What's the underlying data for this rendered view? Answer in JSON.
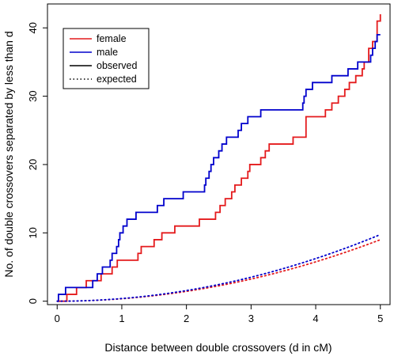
{
  "chart_data": {
    "type": "line",
    "xlabel": "Distance between double crossovers (d in cM)",
    "ylabel": "No. of double crossovers separated by less than d",
    "xlim": [
      -0.15,
      5.15
    ],
    "ylim": [
      -0.5,
      43.5
    ],
    "xticks": [
      0,
      1,
      2,
      3,
      4,
      5
    ],
    "yticks": [
      0,
      10,
      20,
      30,
      40
    ],
    "legend_position": "top-left",
    "legend": [
      {
        "label": "female",
        "color": "#e41a1c",
        "style": "solid"
      },
      {
        "label": "male",
        "color": "#0000cc",
        "style": "solid"
      },
      {
        "label": "observed",
        "color": "#000000",
        "style": "solid"
      },
      {
        "label": "expected",
        "color": "#000000",
        "style": "dotted"
      }
    ],
    "series": [
      {
        "name": "female observed",
        "color": "#e41a1c",
        "style": "step",
        "points": [
          [
            0,
            0
          ],
          [
            0.15,
            0
          ],
          [
            0.15,
            1
          ],
          [
            0.3,
            1
          ],
          [
            0.3,
            2
          ],
          [
            0.45,
            2
          ],
          [
            0.45,
            3
          ],
          [
            0.68,
            3
          ],
          [
            0.68,
            4
          ],
          [
            0.85,
            4
          ],
          [
            0.85,
            5
          ],
          [
            0.93,
            5
          ],
          [
            0.93,
            6
          ],
          [
            1.25,
            6
          ],
          [
            1.25,
            7
          ],
          [
            1.3,
            7
          ],
          [
            1.3,
            8
          ],
          [
            1.5,
            8
          ],
          [
            1.5,
            9
          ],
          [
            1.62,
            9
          ],
          [
            1.62,
            10
          ],
          [
            1.82,
            10
          ],
          [
            1.82,
            11
          ],
          [
            2.2,
            11
          ],
          [
            2.2,
            12
          ],
          [
            2.45,
            12
          ],
          [
            2.45,
            13
          ],
          [
            2.52,
            13
          ],
          [
            2.52,
            14
          ],
          [
            2.6,
            14
          ],
          [
            2.6,
            15
          ],
          [
            2.7,
            15
          ],
          [
            2.7,
            16
          ],
          [
            2.75,
            16
          ],
          [
            2.75,
            17
          ],
          [
            2.85,
            17
          ],
          [
            2.85,
            18
          ],
          [
            2.95,
            18
          ],
          [
            2.95,
            19
          ],
          [
            2.98,
            19
          ],
          [
            2.98,
            20
          ],
          [
            3.15,
            20
          ],
          [
            3.15,
            21
          ],
          [
            3.22,
            21
          ],
          [
            3.22,
            22
          ],
          [
            3.28,
            22
          ],
          [
            3.28,
            23
          ],
          [
            3.65,
            23
          ],
          [
            3.65,
            24
          ],
          [
            3.85,
            24
          ],
          [
            3.85,
            27
          ],
          [
            4.15,
            27
          ],
          [
            4.15,
            28
          ],
          [
            4.25,
            28
          ],
          [
            4.25,
            29
          ],
          [
            4.35,
            29
          ],
          [
            4.35,
            30
          ],
          [
            4.45,
            30
          ],
          [
            4.45,
            31
          ],
          [
            4.52,
            31
          ],
          [
            4.52,
            32
          ],
          [
            4.62,
            32
          ],
          [
            4.62,
            33
          ],
          [
            4.72,
            33
          ],
          [
            4.72,
            34
          ],
          [
            4.75,
            34
          ],
          [
            4.75,
            35
          ],
          [
            4.82,
            35
          ],
          [
            4.82,
            37
          ],
          [
            4.88,
            37
          ],
          [
            4.88,
            38
          ],
          [
            4.95,
            38
          ],
          [
            4.95,
            41
          ],
          [
            5.0,
            41
          ],
          [
            5.0,
            42
          ]
        ]
      },
      {
        "name": "male observed",
        "color": "#0000cc",
        "style": "step",
        "points": [
          [
            0,
            0
          ],
          [
            0.02,
            0
          ],
          [
            0.02,
            1
          ],
          [
            0.13,
            1
          ],
          [
            0.13,
            2
          ],
          [
            0.55,
            2
          ],
          [
            0.55,
            3
          ],
          [
            0.62,
            3
          ],
          [
            0.62,
            4
          ],
          [
            0.7,
            4
          ],
          [
            0.7,
            5
          ],
          [
            0.82,
            5
          ],
          [
            0.82,
            6
          ],
          [
            0.85,
            6
          ],
          [
            0.85,
            7
          ],
          [
            0.92,
            7
          ],
          [
            0.92,
            8
          ],
          [
            0.95,
            8
          ],
          [
            0.95,
            9
          ],
          [
            0.97,
            9
          ],
          [
            0.97,
            10
          ],
          [
            1.02,
            10
          ],
          [
            1.02,
            11
          ],
          [
            1.08,
            11
          ],
          [
            1.08,
            12
          ],
          [
            1.22,
            12
          ],
          [
            1.22,
            13
          ],
          [
            1.55,
            13
          ],
          [
            1.55,
            14
          ],
          [
            1.65,
            14
          ],
          [
            1.65,
            15
          ],
          [
            1.95,
            15
          ],
          [
            1.95,
            16
          ],
          [
            2.28,
            16
          ],
          [
            2.28,
            17
          ],
          [
            2.3,
            17
          ],
          [
            2.3,
            18
          ],
          [
            2.35,
            18
          ],
          [
            2.35,
            19
          ],
          [
            2.38,
            19
          ],
          [
            2.38,
            20
          ],
          [
            2.42,
            20
          ],
          [
            2.42,
            21
          ],
          [
            2.5,
            21
          ],
          [
            2.5,
            22
          ],
          [
            2.55,
            22
          ],
          [
            2.55,
            23
          ],
          [
            2.62,
            23
          ],
          [
            2.62,
            24
          ],
          [
            2.8,
            24
          ],
          [
            2.8,
            25
          ],
          [
            2.85,
            25
          ],
          [
            2.85,
            26
          ],
          [
            2.95,
            26
          ],
          [
            2.95,
            27
          ],
          [
            3.15,
            27
          ],
          [
            3.15,
            28
          ],
          [
            3.8,
            28
          ],
          [
            3.8,
            29
          ],
          [
            3.82,
            29
          ],
          [
            3.82,
            30
          ],
          [
            3.85,
            30
          ],
          [
            3.85,
            31
          ],
          [
            3.95,
            31
          ],
          [
            3.95,
            32
          ],
          [
            4.25,
            32
          ],
          [
            4.25,
            33
          ],
          [
            4.5,
            33
          ],
          [
            4.5,
            34
          ],
          [
            4.65,
            34
          ],
          [
            4.65,
            35
          ],
          [
            4.85,
            35
          ],
          [
            4.85,
            36
          ],
          [
            4.88,
            36
          ],
          [
            4.88,
            37
          ],
          [
            4.92,
            37
          ],
          [
            4.92,
            38
          ],
          [
            4.95,
            38
          ],
          [
            4.95,
            39
          ],
          [
            5.0,
            39
          ]
        ]
      },
      {
        "name": "female expected",
        "color": "#e41a1c",
        "style": "dotted",
        "coef": 0.36,
        "x_start": 0,
        "x_end": 5
      },
      {
        "name": "male expected",
        "color": "#0000cc",
        "style": "dotted",
        "coef": 0.39,
        "x_start": 0,
        "x_end": 5
      }
    ]
  }
}
